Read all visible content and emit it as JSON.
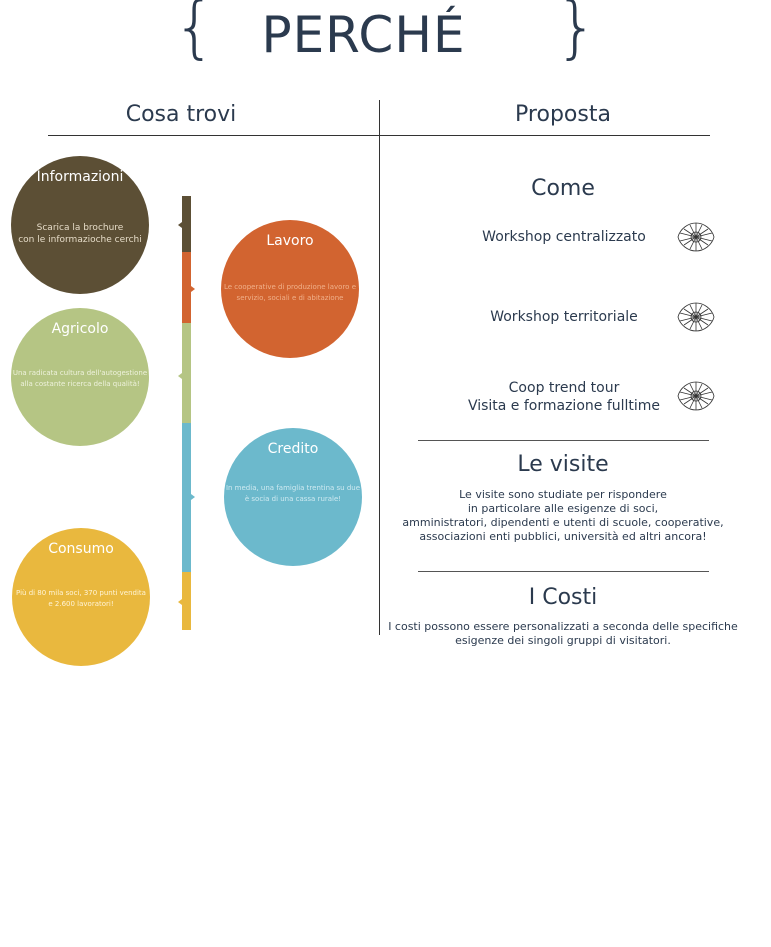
{
  "header": {
    "title": "PERCHÉ",
    "brace_left": "{",
    "brace_right": "}"
  },
  "columns": {
    "left": "Cosa trovi",
    "right": "Proposta"
  },
  "circles": [
    {
      "title": "Informazioni",
      "lines": [
        "Scarica la brochure",
        "con le informazioche cerchi"
      ]
    },
    {
      "title": "Lavoro",
      "lines": [
        "Le cooperative di produzione lavoro e",
        "servizio, sociali e di abitazione"
      ]
    },
    {
      "title": "Agricolo",
      "lines": [
        "Una radicata cultura dell'autogestione",
        "alla costante ricerca della qualità!"
      ]
    },
    {
      "title": "Credito",
      "lines": [
        "In media, una famiglia trentina su due",
        "è socia di una cassa rurale!"
      ]
    },
    {
      "title": "Consumo",
      "lines": [
        "Più di 80 mila soci, 370 punti vendita",
        "e 2.600 lavoratori!"
      ]
    }
  ],
  "colors": {
    "informazioni": "#5c4f35",
    "lavoro": "#d26430",
    "agricolo": "#b5c584",
    "credito": "#6cb9cc",
    "consumo": "#e9b83e",
    "text": "#2b3a4e"
  },
  "come": {
    "title": "Come",
    "items": [
      {
        "lines": [
          "Workshop centralizzato"
        ],
        "icon": "coop-logo-icon"
      },
      {
        "lines": [
          "Workshop territoriale"
        ],
        "icon": "coop-logo-icon"
      },
      {
        "lines": [
          "Coop trend tour",
          "Visita e formazione fulltime"
        ],
        "icon": "coop-logo-icon"
      }
    ]
  },
  "visite": {
    "title": "Le visite",
    "lines": [
      "Le visite sono studiate per rispondere",
      "in particolare alle esigenze di soci,",
      "amministratori, dipendenti e utenti di scuole, cooperative,",
      "associazioni enti pubblici, università ed altri ancora!"
    ]
  },
  "costi": {
    "title": "I Costi",
    "lines": [
      "I costi possono essere personalizzati a seconda delle specifiche",
      "esigenze dei singoli gruppi di visitatori."
    ]
  }
}
